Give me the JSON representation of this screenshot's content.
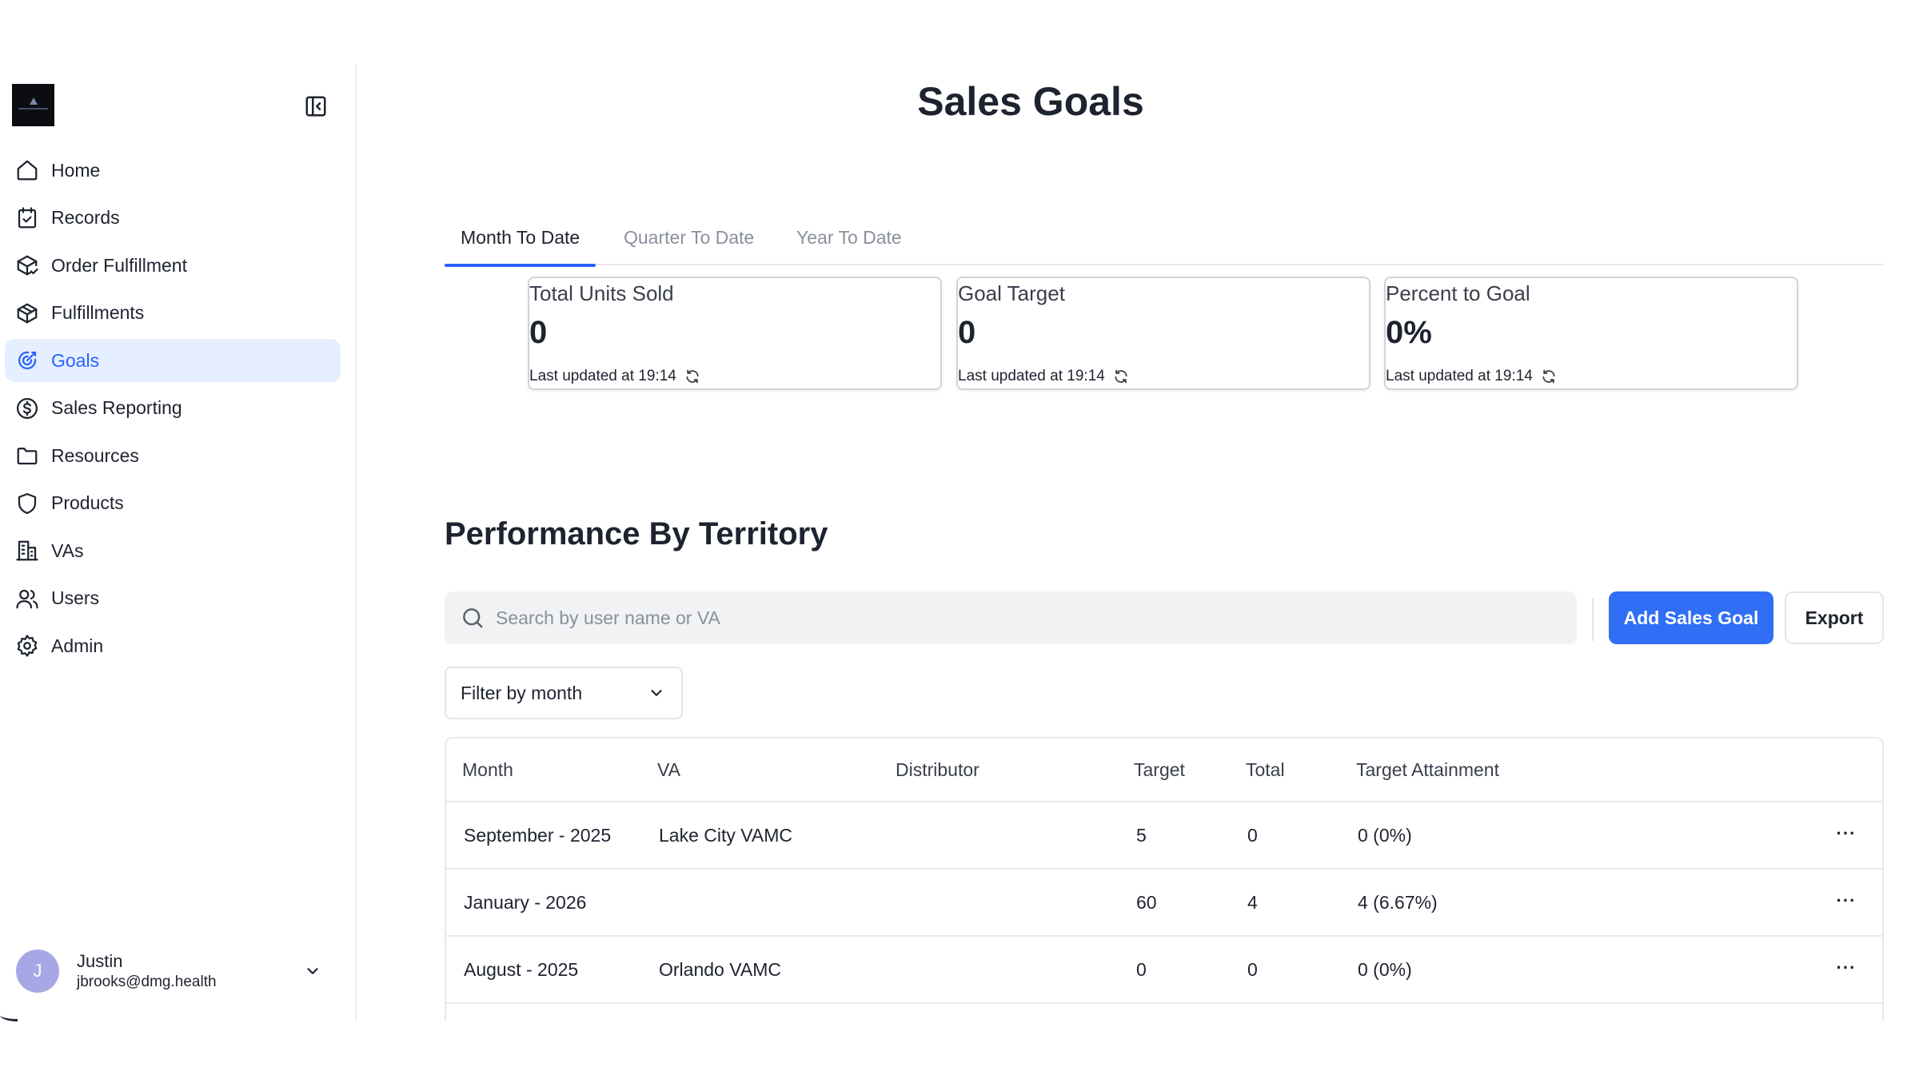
{
  "sidebar": {
    "collapse_icon": "sidebar-collapse-icon",
    "items": [
      {
        "label": "Home",
        "icon": "home-icon"
      },
      {
        "label": "Records",
        "icon": "calendar-check-icon"
      },
      {
        "label": "Order Fulfillment",
        "icon": "package-check-icon"
      },
      {
        "label": "Fulfillments",
        "icon": "package-icon"
      },
      {
        "label": "Goals",
        "icon": "goal-icon",
        "active": true
      },
      {
        "label": "Sales Reporting",
        "icon": "dollar-circle-icon"
      },
      {
        "label": "Resources",
        "icon": "folder-icon"
      },
      {
        "label": "Products",
        "icon": "shield-icon"
      },
      {
        "label": "VAs",
        "icon": "building-icon"
      },
      {
        "label": "Users",
        "icon": "users-icon"
      },
      {
        "label": "Admin",
        "icon": "gear-icon"
      }
    ],
    "user": {
      "initial": "J",
      "name": "Justin",
      "email": "jbrooks@dmg.health"
    }
  },
  "page": {
    "title": "Sales Goals"
  },
  "tabs": [
    {
      "label": "Month To Date",
      "active": true
    },
    {
      "label": "Quarter To Date"
    },
    {
      "label": "Year To Date"
    }
  ],
  "stats": [
    {
      "label": "Total Units Sold",
      "value": "0",
      "updated": "Last updated at 19:14"
    },
    {
      "label": "Goal Target",
      "value": "0",
      "updated": "Last updated at 19:14"
    },
    {
      "label": "Percent to Goal",
      "value": "0%",
      "updated": "Last updated at 19:14"
    }
  ],
  "performance": {
    "title": "Performance By Territory",
    "search_placeholder": "Search by user name or VA",
    "add_button": "Add Sales Goal",
    "export_button": "Export",
    "filter_label": "Filter by month",
    "columns": [
      "Month",
      "VA",
      "Distributor",
      "Target",
      "Total",
      "Target Attainment"
    ],
    "rows": [
      {
        "month": "September - 2025",
        "va": "Lake City VAMC",
        "distributor": "",
        "target": "5",
        "total": "0",
        "attainment": "0 (0%)"
      },
      {
        "month": "January - 2026",
        "va": "",
        "distributor": "",
        "target": "60",
        "total": "4",
        "attainment": "4 (6.67%)"
      },
      {
        "month": "August - 2025",
        "va": "Orlando VAMC",
        "distributor": "",
        "target": "0",
        "total": "0",
        "attainment": "0 (0%)"
      }
    ],
    "more_glyph": "···"
  },
  "colors": {
    "accent": "#2962ff",
    "button": "#2f6ef5",
    "active_bg": "#e6efff",
    "avatar": "#a8a7e6"
  }
}
